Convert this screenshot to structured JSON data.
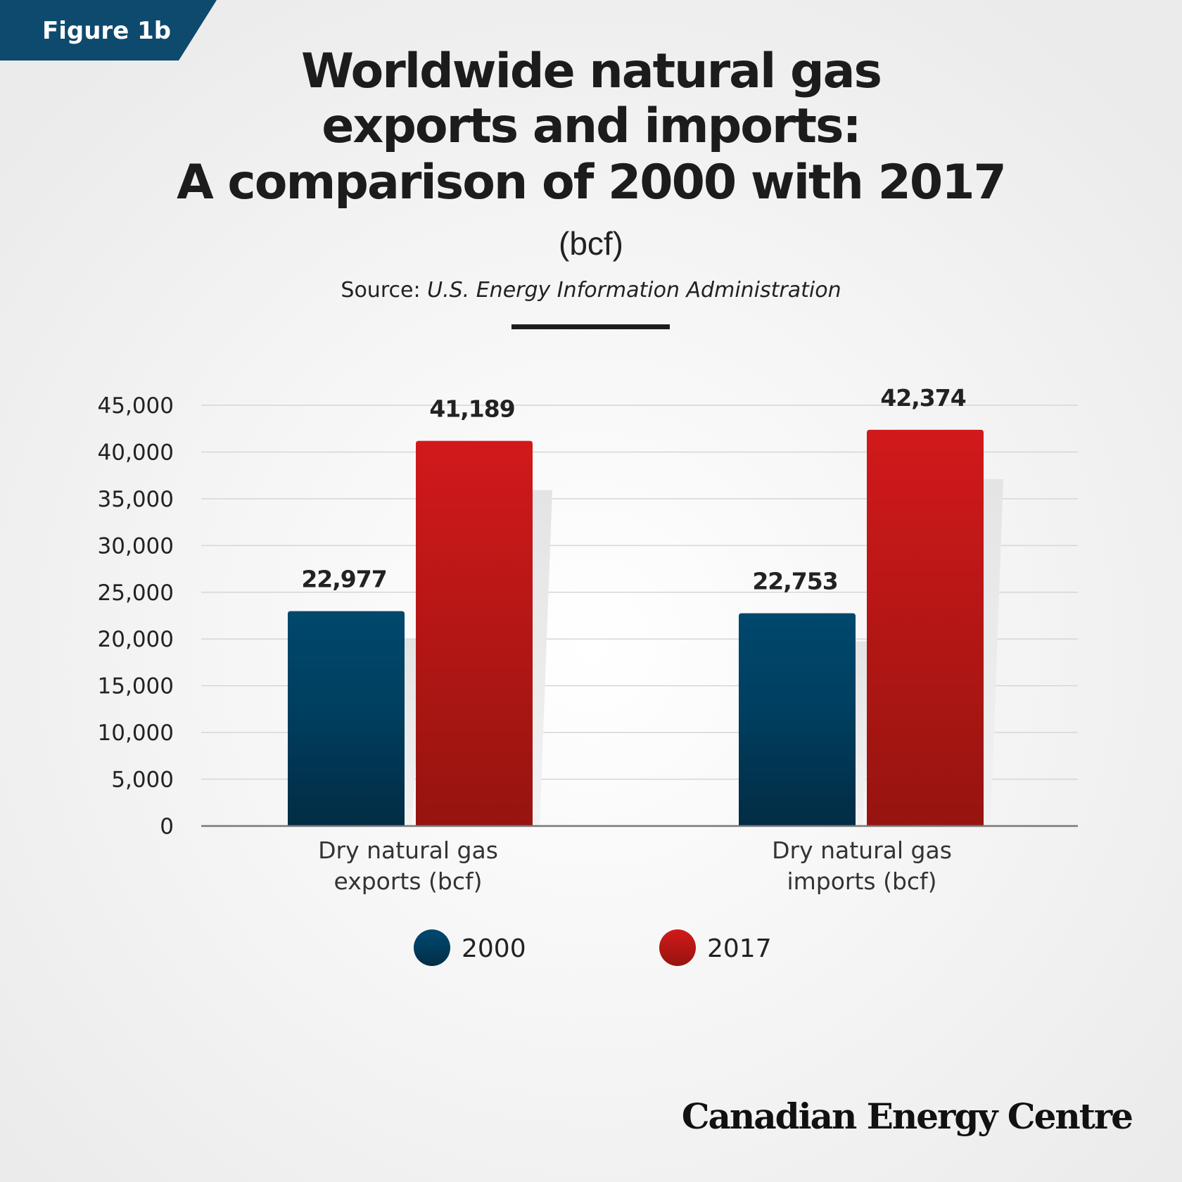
{
  "figure_label": "Figure 1b",
  "brand": "Canadian Energy Centre",
  "colors": {
    "series_2000": "#004466",
    "series_2017": "#cc1a1a",
    "badge": "#0d4a6e"
  },
  "chart_data": {
    "type": "bar",
    "title_lines": [
      "Worldwide natural gas",
      "exports and imports:",
      "A comparison of 2000 with 2017"
    ],
    "subtitle": "(bcf)",
    "source_label": "Source:",
    "source": "U.S. Energy Information Administration",
    "categories": [
      [
        "Dry natural gas",
        "exports (bcf)"
      ],
      [
        "Dry natural gas",
        "imports (bcf)"
      ]
    ],
    "series": [
      {
        "name": "2000",
        "values": [
          22977,
          22753
        ],
        "labels": [
          "22,977",
          "22,753"
        ]
      },
      {
        "name": "2017",
        "values": [
          41189,
          42374
        ],
        "labels": [
          "41,189",
          "42,374"
        ]
      }
    ],
    "ylim": [
      0,
      45000
    ],
    "yticks": [
      "0",
      "5,000",
      "10,000",
      "15,000",
      "20,000",
      "25,000",
      "30,000",
      "35,000",
      "40,000",
      "45,000"
    ],
    "grid": true,
    "legend_position": "bottom"
  }
}
